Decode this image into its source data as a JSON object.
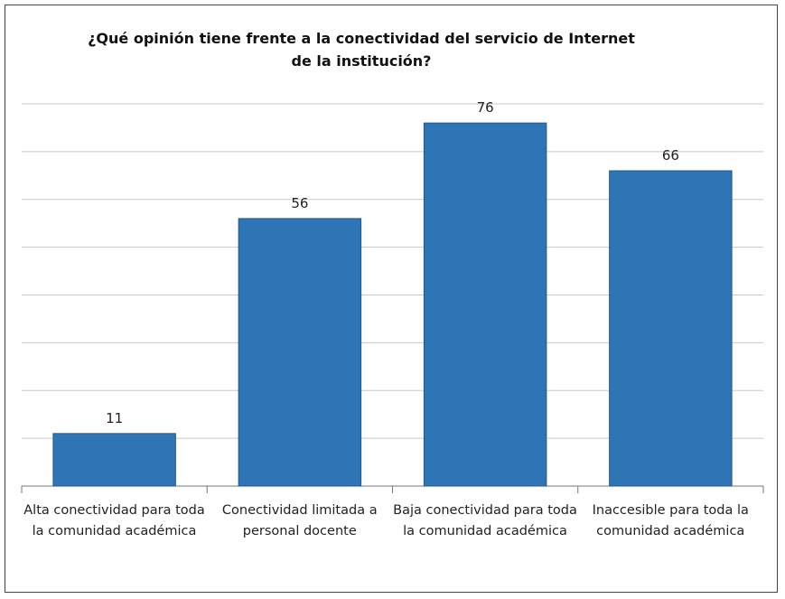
{
  "chart_data": {
    "type": "bar",
    "title": "¿Qué opinión  tiene frente a la conectividad  del servicio de Internet de la institución?",
    "categories": [
      "Alta conectividad para toda la comunidad académica",
      "Conectividad limitada a personal docente",
      "Baja conectividad para toda la comunidad académica",
      "Inaccesible para toda la comunidad académica"
    ],
    "values": [
      11,
      56,
      76,
      66
    ],
    "color": "#2e75b6",
    "ylim": [
      0,
      80
    ],
    "yticks": [
      0,
      10,
      20,
      30,
      40,
      50,
      60,
      70,
      80
    ],
    "grid": true
  }
}
